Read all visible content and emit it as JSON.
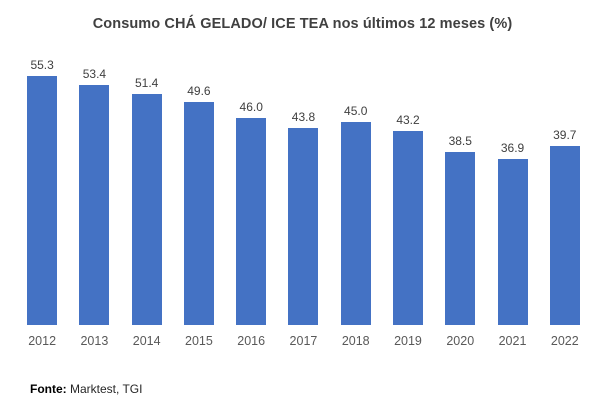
{
  "title": "Consumo CHÁ GELADO/ ICE TEA nos últimos 12 meses (%)",
  "source": {
    "label": "Fonte:",
    "text": " Marktest, TGI"
  },
  "colors": {
    "bar": "#4472C4",
    "title_text": "#404040",
    "value_label_text": "#404040",
    "axis_label_text": "#595959"
  },
  "chart_data": {
    "type": "bar",
    "title": "Consumo CHÁ GELADO/ ICE TEA nos últimos 12 meses (%)",
    "categories": [
      "2012",
      "2013",
      "2014",
      "2015",
      "2016",
      "2017",
      "2018",
      "2019",
      "2020",
      "2021",
      "2022"
    ],
    "values": [
      55.3,
      53.4,
      51.4,
      49.6,
      46.0,
      43.8,
      45.0,
      43.2,
      38.5,
      36.9,
      39.7
    ],
    "value_labels": [
      "55.3",
      "53.4",
      "51.4",
      "49.6",
      "46.0",
      "43.8",
      "45.0",
      "43.2",
      "38.5",
      "36.9",
      "39.7"
    ],
    "xlabel": "",
    "ylabel": "",
    "ylim": [
      0,
      60
    ],
    "grid": false,
    "legend": false,
    "data_labels_position": "outside-end"
  }
}
